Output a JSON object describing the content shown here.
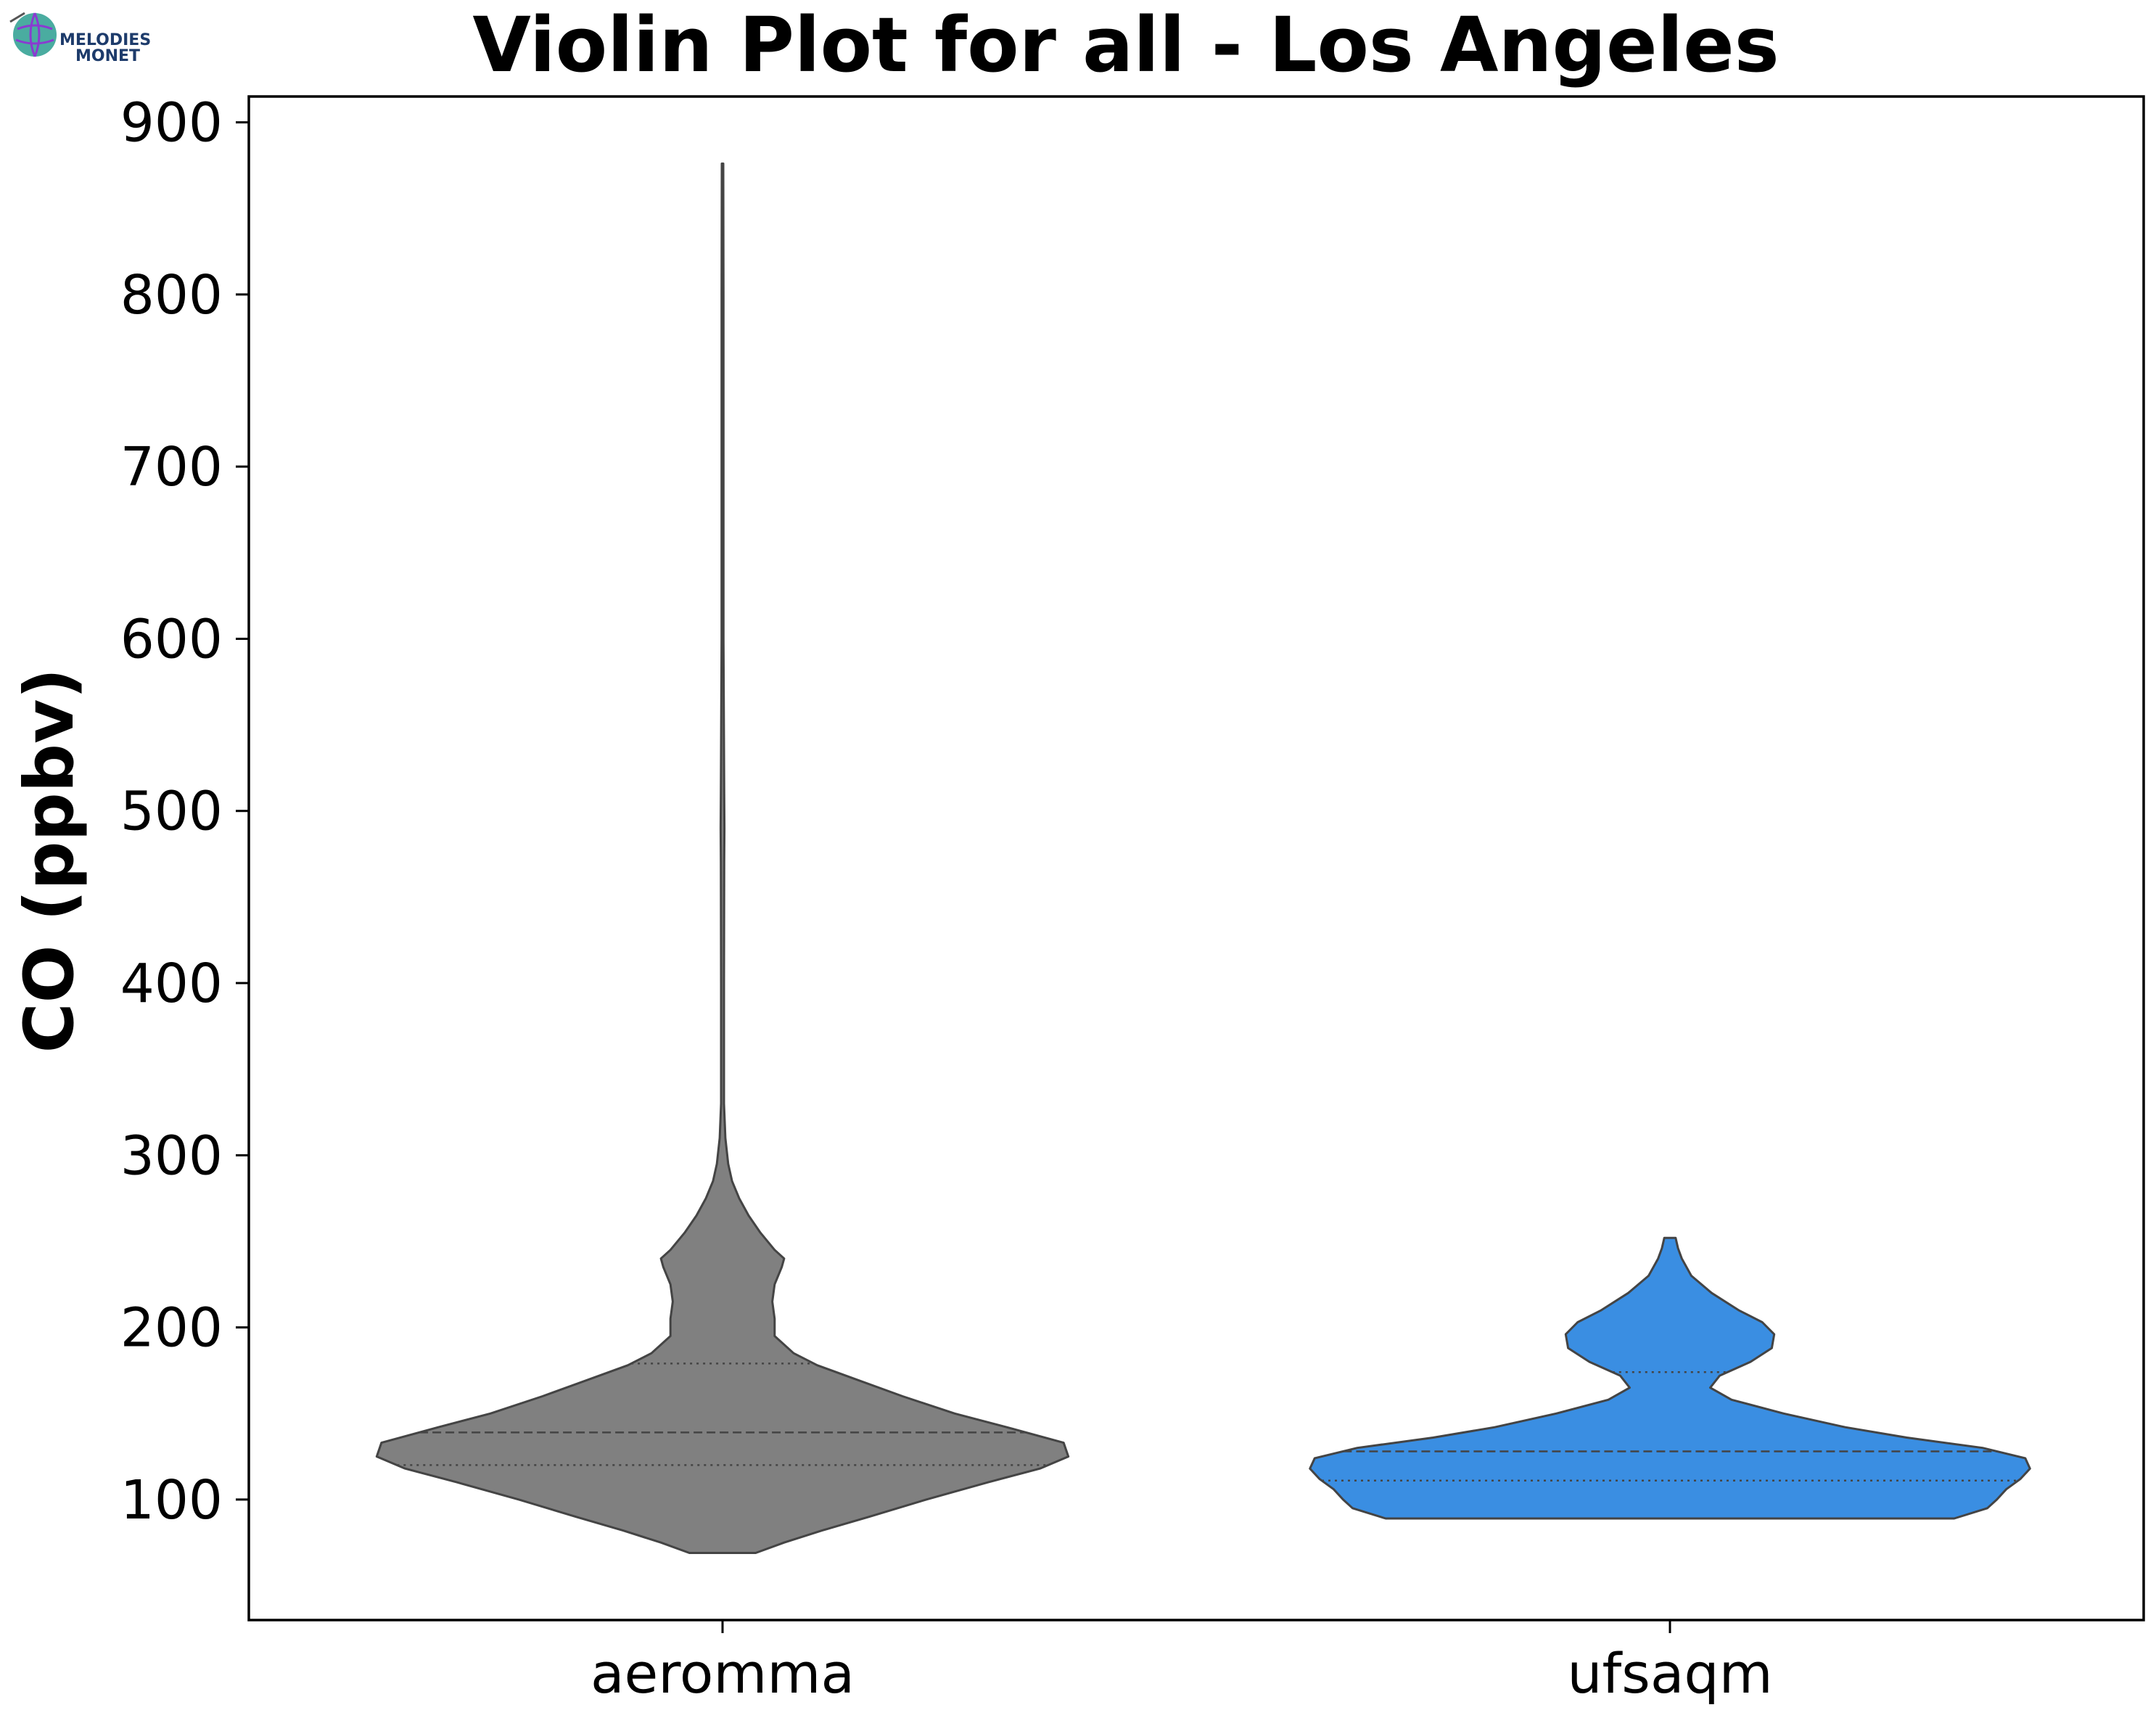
{
  "logo": {
    "line1": "MELODIES",
    "line2": "MONET"
  },
  "chart_data": {
    "type": "violin",
    "title": "Violin Plot for all - Los Angeles",
    "xlabel": "",
    "ylabel": "CO (ppbv)",
    "ylim": [
      30,
      915
    ],
    "yticks": [
      100,
      200,
      300,
      400,
      500,
      600,
      700,
      800,
      900
    ],
    "categories": [
      "aeromma",
      "ufsaqm"
    ],
    "grid": false,
    "series": [
      {
        "name": "aeromma",
        "color": "#808080",
        "quartiles": {
          "q1": 120,
          "median": 139,
          "q3": 179
        },
        "density": [
          [
            69,
            0.07
          ],
          [
            75,
            0.13
          ],
          [
            82,
            0.21
          ],
          [
            90,
            0.31
          ],
          [
            100,
            0.43
          ],
          [
            110,
            0.56
          ],
          [
            118,
            0.67
          ],
          [
            125,
            0.73
          ],
          [
            133,
            0.72
          ],
          [
            142,
            0.6
          ],
          [
            150,
            0.49
          ],
          [
            160,
            0.38
          ],
          [
            170,
            0.28
          ],
          [
            178,
            0.2
          ],
          [
            185,
            0.15
          ],
          [
            195,
            0.11
          ],
          [
            205,
            0.11
          ],
          [
            215,
            0.105
          ],
          [
            225,
            0.11
          ],
          [
            235,
            0.125
          ],
          [
            240,
            0.13
          ],
          [
            245,
            0.11
          ],
          [
            255,
            0.08
          ],
          [
            265,
            0.055
          ],
          [
            275,
            0.035
          ],
          [
            285,
            0.02
          ],
          [
            295,
            0.012
          ],
          [
            310,
            0.006
          ],
          [
            330,
            0.003
          ],
          [
            400,
            0.003
          ],
          [
            470,
            0.0035
          ],
          [
            490,
            0.004
          ],
          [
            510,
            0.0035
          ],
          [
            600,
            0.002
          ],
          [
            700,
            0.002
          ],
          [
            800,
            0.002
          ],
          [
            876,
            0.0015
          ]
        ]
      },
      {
        "name": "ufsaqm",
        "color": "#3a8ee2",
        "quartiles": {
          "q1": 111,
          "median": 128,
          "q3": 174
        },
        "density": [
          [
            89,
            0.6
          ],
          [
            95,
            0.67
          ],
          [
            100,
            0.69
          ],
          [
            106,
            0.71
          ],
          [
            112,
            0.74
          ],
          [
            118,
            0.76
          ],
          [
            124,
            0.75
          ],
          [
            130,
            0.66
          ],
          [
            136,
            0.5
          ],
          [
            142,
            0.37
          ],
          [
            150,
            0.24
          ],
          [
            158,
            0.13
          ],
          [
            165,
            0.085
          ],
          [
            172,
            0.105
          ],
          [
            180,
            0.17
          ],
          [
            188,
            0.215
          ],
          [
            196,
            0.22
          ],
          [
            203,
            0.195
          ],
          [
            210,
            0.145
          ],
          [
            220,
            0.088
          ],
          [
            230,
            0.045
          ],
          [
            240,
            0.025
          ],
          [
            246,
            0.017
          ],
          [
            252,
            0.012
          ]
        ]
      }
    ]
  }
}
